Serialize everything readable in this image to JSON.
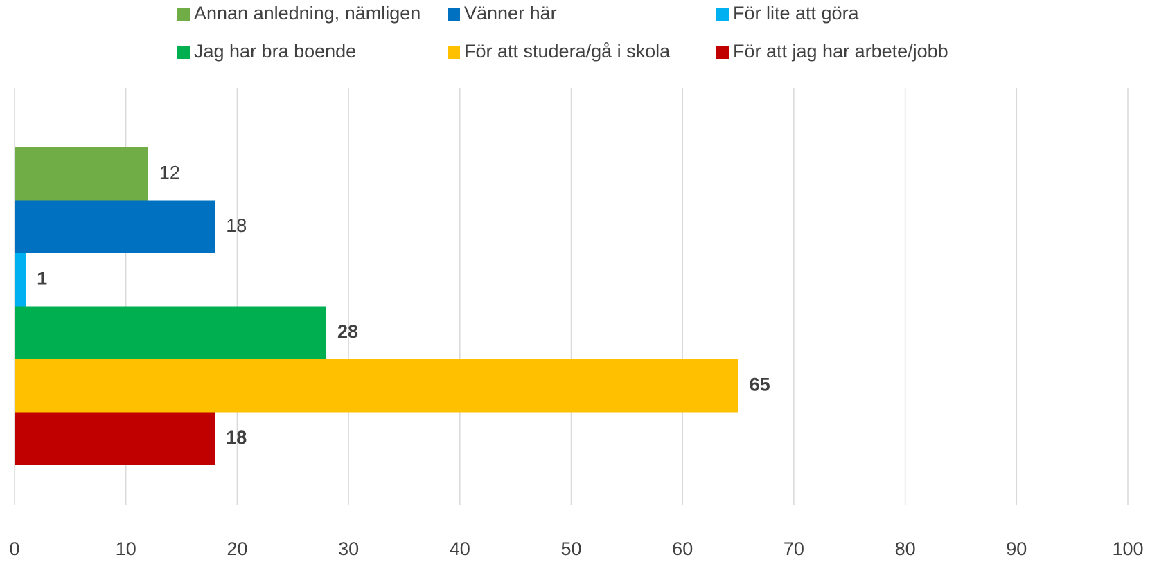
{
  "chart_data": {
    "type": "bar",
    "orientation": "horizontal",
    "categories": [
      null
    ],
    "series": [
      {
        "name": "Annan anledning, nämligen",
        "color": "#70ad47",
        "values": [
          12
        ],
        "bold": false
      },
      {
        "name": "Vänner här",
        "color": "#0070c0",
        "values": [
          18
        ],
        "bold": false
      },
      {
        "name": "För lite att göra",
        "color": "#00b0f0",
        "values": [
          1
        ],
        "bold": true
      },
      {
        "name": "Jag har bra boende",
        "color": "#00b050",
        "values": [
          28
        ],
        "bold": true
      },
      {
        "name": "För att studera/gå i skola",
        "color": "#ffc000",
        "values": [
          65
        ],
        "bold": true
      },
      {
        "name": "För att jag har arbete/jobb",
        "color": "#c00000",
        "values": [
          18
        ],
        "bold": true
      }
    ],
    "xlim": [
      0,
      100
    ],
    "xticks": [
      0,
      10,
      20,
      30,
      40,
      50,
      60,
      70,
      80,
      90,
      100
    ],
    "grid": true,
    "legend": "top"
  }
}
